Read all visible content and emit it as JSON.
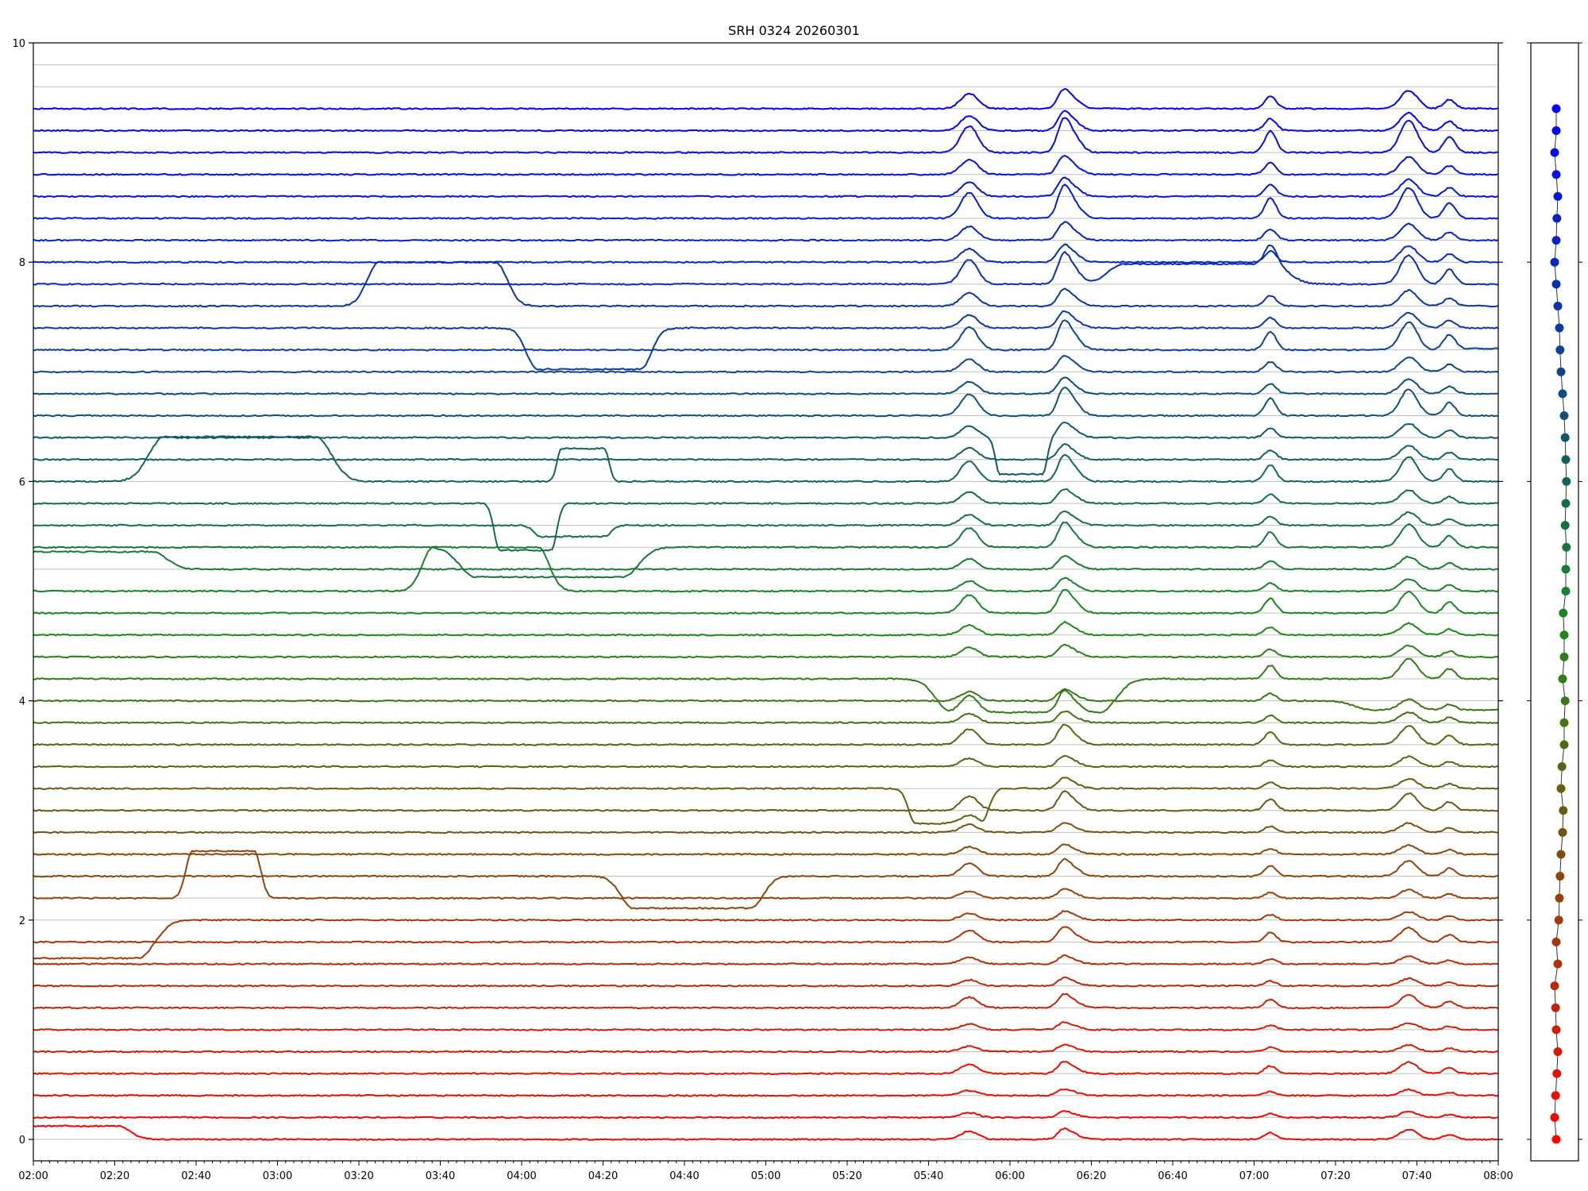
{
  "chart_data": {
    "type": "line",
    "title": "SRH 0324 20260301",
    "xlabel": "",
    "ylabel": "",
    "xlim": [
      "02:00",
      "08:00"
    ],
    "ylim": [
      0,
      10
    ],
    "grid": true,
    "x_ticks": [
      "02:00",
      "02:20",
      "02:40",
      "03:00",
      "03:20",
      "03:40",
      "04:00",
      "04:20",
      "04:40",
      "05:00",
      "05:20",
      "05:40",
      "06:00",
      "06:20",
      "06:40",
      "07:00",
      "07:20",
      "07:40",
      "08:00"
    ],
    "y_ticks": [
      "0",
      "2",
      "4",
      "6",
      "8",
      "10"
    ],
    "series_count": 48,
    "series_baseline_step": 0.2,
    "color_start": "#ff0000",
    "color_mid": "#1a8a1a",
    "color_end": "#0000ff",
    "events": [
      {
        "time": "05:50",
        "amplitude": 0.25,
        "width_min": 3
      },
      {
        "time": "06:13",
        "amplitude": 0.2,
        "width_min": 2
      },
      {
        "time": "06:15",
        "amplitude": 0.18,
        "width_min": 3
      },
      {
        "time": "07:04",
        "amplitude": 0.2,
        "width_min": 2
      },
      {
        "time": "07:38",
        "amplitude": 0.3,
        "width_min": 3
      },
      {
        "time": "07:48",
        "amplitude": 0.15,
        "width_min": 2
      }
    ],
    "side_panel": {
      "markers": [
        {
          "index": 0,
          "x_offset": 0.0
        },
        {
          "index": 1,
          "x_offset": -0.05
        },
        {
          "index": 2,
          "x_offset": -0.02
        },
        {
          "index": 3,
          "x_offset": 0.02
        },
        {
          "index": 4,
          "x_offset": 0.05
        },
        {
          "index": 5,
          "x_offset": 0.0
        },
        {
          "index": 6,
          "x_offset": -0.02
        },
        {
          "index": 7,
          "x_offset": -0.05
        },
        {
          "index": 8,
          "x_offset": 0.05
        },
        {
          "index": 9,
          "x_offset": 0.0
        },
        {
          "index": 10,
          "x_offset": 0.08
        },
        {
          "index": 11,
          "x_offset": 0.1
        },
        {
          "index": 12,
          "x_offset": 0.12
        },
        {
          "index": 13,
          "x_offset": 0.15
        },
        {
          "index": 14,
          "x_offset": 0.2
        },
        {
          "index": 15,
          "x_offset": 0.22
        },
        {
          "index": 16,
          "x_offset": 0.15
        },
        {
          "index": 17,
          "x_offset": 0.18
        },
        {
          "index": 18,
          "x_offset": 0.25
        },
        {
          "index": 19,
          "x_offset": 0.25
        },
        {
          "index": 20,
          "x_offset": 0.28
        },
        {
          "index": 21,
          "x_offset": 0.2
        },
        {
          "index": 22,
          "x_offset": 0.25
        },
        {
          "index": 23,
          "x_offset": 0.25
        },
        {
          "index": 24,
          "x_offset": 0.22
        },
        {
          "index": 25,
          "x_offset": 0.3
        },
        {
          "index": 26,
          "x_offset": 0.3
        },
        {
          "index": 27,
          "x_offset": 0.32
        },
        {
          "index": 28,
          "x_offset": 0.28
        },
        {
          "index": 29,
          "x_offset": 0.3
        },
        {
          "index": 30,
          "x_offset": 0.32
        },
        {
          "index": 31,
          "x_offset": 0.3
        },
        {
          "index": 32,
          "x_offset": 0.28
        },
        {
          "index": 33,
          "x_offset": 0.25
        },
        {
          "index": 34,
          "x_offset": 0.2
        },
        {
          "index": 35,
          "x_offset": 0.15
        },
        {
          "index": 36,
          "x_offset": 0.12
        },
        {
          "index": 37,
          "x_offset": 0.1
        },
        {
          "index": 38,
          "x_offset": 0.05
        },
        {
          "index": 39,
          "x_offset": 0.0
        },
        {
          "index": 40,
          "x_offset": -0.05
        },
        {
          "index": 41,
          "x_offset": 0.0
        },
        {
          "index": 42,
          "x_offset": 0.02
        },
        {
          "index": 43,
          "x_offset": 0.05
        },
        {
          "index": 44,
          "x_offset": 0.0
        },
        {
          "index": 45,
          "x_offset": -0.05
        },
        {
          "index": 46,
          "x_offset": 0.0
        },
        {
          "index": 47,
          "x_offset": 0.0
        }
      ]
    }
  }
}
